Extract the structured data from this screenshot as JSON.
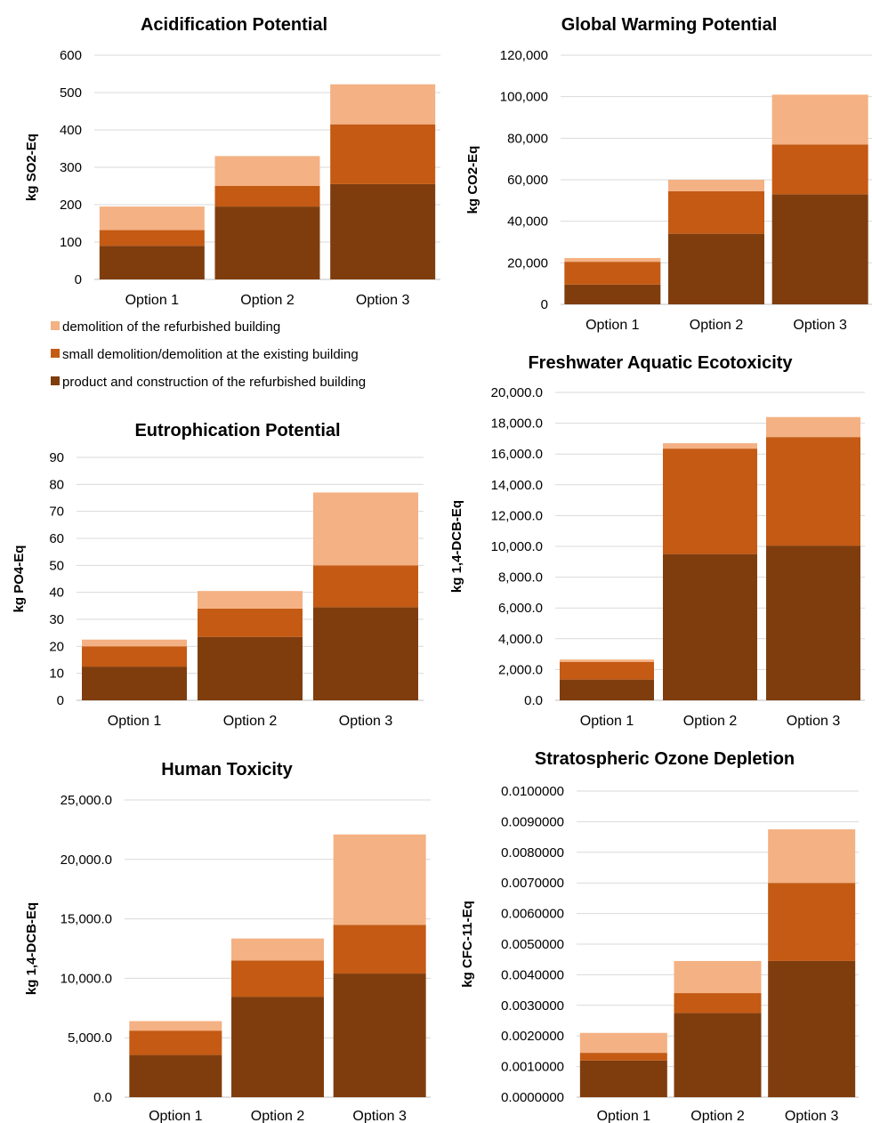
{
  "series_colors": [
    "#7f3d0e",
    "#c45a13",
    "#f4b183"
  ],
  "legend": [
    {
      "label": "demolition of the refurbished building",
      "color": "#f4b183"
    },
    {
      "label": "small demolition/demolition at the existing building",
      "color": "#c45a13"
    },
    {
      "label": "product and construction of the refurbished building",
      "color": "#7f3d0e"
    }
  ],
  "chart_data": [
    {
      "id": "acidification",
      "type": "bar",
      "stacked": true,
      "title": "Acidification Potential",
      "ylabel": "kg SO2-Eq",
      "categories": [
        "Option 1",
        "Option 2",
        "Option 3"
      ],
      "ylim": [
        0,
        600
      ],
      "yticks": [
        "0",
        "100",
        "200",
        "300",
        "400",
        "500",
        "600"
      ],
      "series": [
        {
          "name": "product and construction of the refurbished building",
          "values": [
            90,
            195,
            255
          ]
        },
        {
          "name": "small demolition/demolition at the existing building",
          "values": [
            42,
            55,
            160
          ]
        },
        {
          "name": "demolition of the refurbished building",
          "values": [
            63,
            80,
            107
          ]
        }
      ]
    },
    {
      "id": "gwp",
      "type": "bar",
      "stacked": true,
      "title": "Global Warming Potential",
      "ylabel": "kg CO2-Eq",
      "categories": [
        "Option 1",
        "Option 2",
        "Option 3"
      ],
      "ylim": [
        0,
        120000
      ],
      "yticks": [
        "0",
        "20,000",
        "40,000",
        "60,000",
        "80,000",
        "100,000",
        "120,000"
      ],
      "series": [
        {
          "name": "product and construction of the refurbished building",
          "values": [
            9500,
            34000,
            53000
          ]
        },
        {
          "name": "small demolition/demolition at the existing building",
          "values": [
            11000,
            20500,
            24000
          ]
        },
        {
          "name": "demolition of the refurbished building",
          "values": [
            1800,
            5500,
            24000
          ]
        }
      ]
    },
    {
      "id": "eutrophication",
      "type": "bar",
      "stacked": true,
      "title": "Eutrophication Potential",
      "ylabel": "kg PO4-Eq",
      "categories": [
        "Option 1",
        "Option 2",
        "Option 3"
      ],
      "ylim": [
        0,
        90
      ],
      "yticks": [
        "0",
        "10",
        "20",
        "30",
        "40",
        "50",
        "60",
        "70",
        "80",
        "90"
      ],
      "series": [
        {
          "name": "product and construction of the refurbished building",
          "values": [
            12.5,
            23.5,
            34.5
          ]
        },
        {
          "name": "small demolition/demolition at the existing building",
          "values": [
            7.5,
            10.5,
            15.5
          ]
        },
        {
          "name": "demolition of the refurbished building",
          "values": [
            2.5,
            6.5,
            27
          ]
        }
      ]
    },
    {
      "id": "freshwater",
      "type": "bar",
      "stacked": true,
      "title": "Freshwater Aquatic Ecotoxicity",
      "ylabel": "kg 1,4-DCB-Eq",
      "categories": [
        "Option 1",
        "Option 2",
        "Option 3"
      ],
      "ylim": [
        0,
        20000
      ],
      "yticks": [
        "0.0",
        "2,000.0",
        "4,000.0",
        "6,000.0",
        "8,000.0",
        "10,000.0",
        "12,000.0",
        "14,000.0",
        "16,000.0",
        "18,000.0",
        "20,000.0"
      ],
      "series": [
        {
          "name": "product and construction of the refurbished building",
          "values": [
            1350,
            9500,
            10050
          ]
        },
        {
          "name": "small demolition/demolition at the existing building",
          "values": [
            1150,
            6850,
            7050
          ]
        },
        {
          "name": "demolition of the refurbished building",
          "values": [
            150,
            350,
            1300
          ]
        }
      ]
    },
    {
      "id": "human",
      "type": "bar",
      "stacked": true,
      "title": "Human Toxicity",
      "ylabel": "kg 1,4-DCB-Eq",
      "categories": [
        "Option 1",
        "Option 2",
        "Option 3"
      ],
      "ylim": [
        0,
        25000
      ],
      "yticks": [
        "0.0",
        "5,000.0",
        "10,000.0",
        "15,000.0",
        "20,000.0",
        "25,000.0"
      ],
      "series": [
        {
          "name": "product and construction of the refurbished building",
          "values": [
            3550,
            8450,
            10400
          ]
        },
        {
          "name": "small demolition/demolition at the existing building",
          "values": [
            2050,
            3050,
            4100
          ]
        },
        {
          "name": "demolition of the refurbished building",
          "values": [
            800,
            1850,
            7600
          ]
        }
      ]
    },
    {
      "id": "ozone",
      "type": "bar",
      "stacked": true,
      "title": "Stratospheric Ozone Depletion",
      "ylabel": "kg CFC-11-Eq",
      "categories": [
        "Option 1",
        "Option 2",
        "Option 3"
      ],
      "ylim": [
        0,
        0.01
      ],
      "yticks": [
        "0.0000000",
        "0.0010000",
        "0.0020000",
        "0.0030000",
        "0.0040000",
        "0.0050000",
        "0.0060000",
        "0.0070000",
        "0.0080000",
        "0.0090000",
        "0.0100000"
      ],
      "series": [
        {
          "name": "product and construction of the refurbished building",
          "values": [
            0.0012,
            0.00275,
            0.00445
          ]
        },
        {
          "name": "small demolition/demolition at the existing building",
          "values": [
            0.00025,
            0.00065,
            0.00255
          ]
        },
        {
          "name": "demolition of the refurbished building",
          "values": [
            0.00065,
            0.00105,
            0.00175
          ]
        }
      ]
    }
  ]
}
